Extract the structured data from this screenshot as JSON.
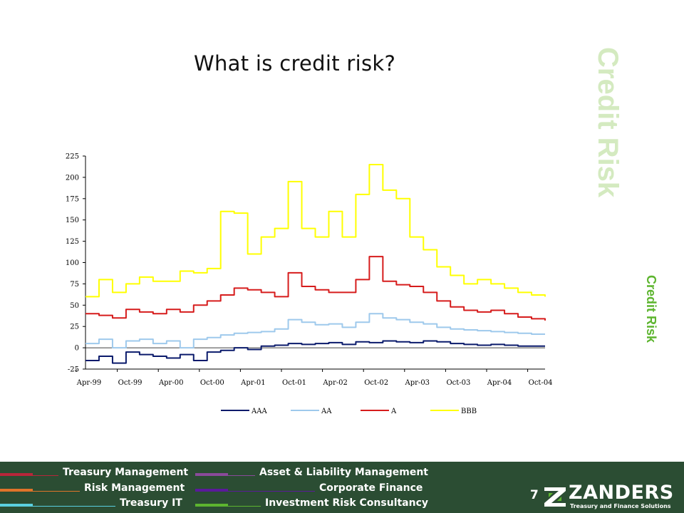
{
  "slide": {
    "title": "What is credit risk?",
    "side_label_large": "Credit Risk",
    "side_label_small": "Credit Risk",
    "page_number": "7"
  },
  "colors": {
    "side_large": "#d4eac0",
    "side_small": "#5db52f",
    "footer_bg": "#2b4d33"
  },
  "chart_data": {
    "type": "line",
    "title": "",
    "xlabel": "",
    "ylabel": "",
    "ylim": [
      -25,
      225
    ],
    "yticks": [
      -25,
      0,
      25,
      50,
      75,
      100,
      125,
      150,
      175,
      200,
      225
    ],
    "x_tick_labels": [
      "Apr-99",
      "Oct-99",
      "Apr-00",
      "Oct-00",
      "Apr-01",
      "Oct-01",
      "Apr-02",
      "Oct-02",
      "Apr-03",
      "Oct-03",
      "Apr-04",
      "Oct-04"
    ],
    "x": [
      "Apr-99",
      "Jun-99",
      "Aug-99",
      "Oct-99",
      "Dec-99",
      "Feb-00",
      "Apr-00",
      "Jun-00",
      "Aug-00",
      "Oct-00",
      "Dec-00",
      "Feb-01",
      "Apr-01",
      "Jun-01",
      "Aug-01",
      "Oct-01",
      "Dec-01",
      "Feb-02",
      "Apr-02",
      "Jun-02",
      "Aug-02",
      "Oct-02",
      "Dec-02",
      "Feb-03",
      "Apr-03",
      "Jun-03",
      "Aug-03",
      "Oct-03",
      "Dec-03",
      "Feb-04",
      "Apr-04",
      "Jun-04",
      "Aug-04",
      "Oct-04",
      "Dec-04"
    ],
    "grid": false,
    "legend_position": "bottom",
    "series": [
      {
        "name": "AAA",
        "color": "#0a1a6b",
        "values": [
          -15,
          -10,
          -18,
          -5,
          -8,
          -10,
          -12,
          -8,
          -15,
          -5,
          -3,
          0,
          -2,
          2,
          3,
          5,
          4,
          5,
          6,
          4,
          7,
          6,
          8,
          7,
          6,
          8,
          7,
          5,
          4,
          3,
          4,
          3,
          2,
          2,
          2
        ]
      },
      {
        "name": "AA",
        "color": "#9ec9ec",
        "values": [
          5,
          10,
          0,
          8,
          10,
          5,
          8,
          0,
          10,
          12,
          15,
          17,
          18,
          19,
          22,
          33,
          30,
          27,
          28,
          24,
          30,
          40,
          35,
          33,
          30,
          28,
          24,
          22,
          21,
          20,
          19,
          18,
          17,
          16,
          16
        ]
      },
      {
        "name": "A",
        "color": "#d61c1c",
        "values": [
          40,
          38,
          35,
          45,
          42,
          40,
          45,
          42,
          50,
          55,
          62,
          70,
          68,
          65,
          60,
          88,
          72,
          68,
          65,
          65,
          80,
          107,
          78,
          74,
          72,
          65,
          55,
          48,
          44,
          42,
          44,
          40,
          36,
          34,
          32
        ]
      },
      {
        "name": "BBB",
        "color": "#ffff00",
        "values": [
          60,
          80,
          65,
          75,
          83,
          78,
          78,
          90,
          88,
          93,
          160,
          158,
          110,
          130,
          140,
          195,
          140,
          130,
          160,
          130,
          180,
          215,
          185,
          175,
          130,
          115,
          95,
          85,
          75,
          80,
          75,
          70,
          65,
          62,
          60
        ]
      }
    ]
  }
}
